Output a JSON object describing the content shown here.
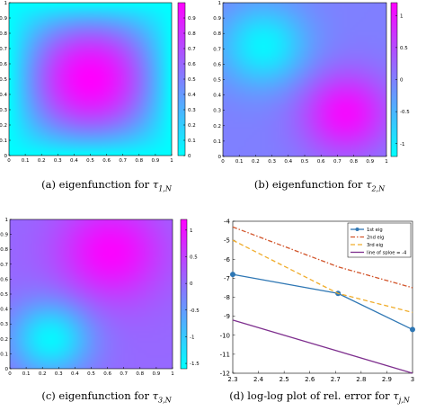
{
  "chart_data": [
    {
      "type": "heatmap",
      "mode": "eig1",
      "xlim": [
        0,
        1
      ],
      "ylim": [
        0,
        1
      ],
      "xticks": [
        "0",
        "0.1",
        "0.2",
        "0.3",
        "0.4",
        "0.5",
        "0.6",
        "0.7",
        "0.8",
        "0.9",
        "1"
      ],
      "yticks": [
        "0",
        "0.1",
        "0.2",
        "0.3",
        "0.4",
        "0.5",
        "0.6",
        "0.7",
        "0.8",
        "0.9",
        "1"
      ],
      "colorbar_ticks": [
        "0",
        "0.1",
        "0.2",
        "0.3",
        "0.4",
        "0.5",
        "0.6",
        "0.7",
        "0.8",
        "0.9"
      ],
      "colorbar_range": [
        0,
        1
      ],
      "caption_prefix": "(a) eigenfunction for ",
      "caption_symbol": "τ",
      "caption_sub": "1,N"
    },
    {
      "type": "heatmap",
      "mode": "eig2",
      "xlim": [
        0,
        1
      ],
      "ylim": [
        0,
        1
      ],
      "xticks": [
        "0",
        "0.1",
        "0.2",
        "0.3",
        "0.4",
        "0.5",
        "0.6",
        "0.7",
        "0.8",
        "0.9",
        "1"
      ],
      "yticks": [
        "0",
        "0.1",
        "0.2",
        "0.3",
        "0.4",
        "0.5",
        "0.6",
        "0.7",
        "0.8",
        "0.9",
        "1"
      ],
      "colorbar_ticks": [
        "1",
        "0.5",
        "0",
        "-0.5",
        "-1"
      ],
      "colorbar_values": [
        1,
        0.5,
        0,
        -0.5,
        -1
      ],
      "colorbar_range": [
        -1.2,
        1.2
      ],
      "caption_prefix": "(b) eigenfunction for ",
      "caption_symbol": "τ",
      "caption_sub": "2,N"
    },
    {
      "type": "heatmap",
      "mode": "eig3",
      "xlim": [
        0,
        1
      ],
      "ylim": [
        0,
        1
      ],
      "xticks": [
        "0",
        "0.1",
        "0.2",
        "0.3",
        "0.4",
        "0.5",
        "0.6",
        "0.7",
        "0.8",
        "0.9",
        "1"
      ],
      "yticks": [
        "0",
        "0.1",
        "0.2",
        "0.3",
        "0.4",
        "0.5",
        "0.6",
        "0.7",
        "0.8",
        "0.9",
        "1"
      ],
      "colorbar_ticks": [
        "1",
        "0.5",
        "0",
        "-0.5",
        "-1",
        "-1.5"
      ],
      "colorbar_values": [
        1,
        0.5,
        0,
        -0.5,
        -1,
        -1.5
      ],
      "colorbar_range": [
        -1.6,
        1.2
      ],
      "caption_prefix": "(c) eigenfunction for ",
      "caption_symbol": "τ",
      "caption_sub": "3,N"
    },
    {
      "type": "line",
      "x_ticks": [
        "2.3",
        "2.4",
        "2.5",
        "2.6",
        "2.7",
        "2.8",
        "2.9",
        "3"
      ],
      "y_ticks": [
        "-4",
        "-5",
        "-6",
        "-7",
        "-8",
        "-9",
        "-10",
        "-11",
        "-12"
      ],
      "xlim": [
        2.3,
        3.0
      ],
      "ylim": [
        -12,
        -4
      ],
      "legend_position": "top-right",
      "series": [
        {
          "name": "1st eig",
          "x": [
            2.3,
            2.71,
            3.0
          ],
          "y": [
            -6.8,
            -7.8,
            -9.7
          ],
          "color": "#2f77b4",
          "style": "solid",
          "marker": "circle"
        },
        {
          "name": "2nd eig",
          "x": [
            2.3,
            2.71,
            3.0
          ],
          "y": [
            -4.3,
            -6.4,
            -7.5
          ],
          "color": "#d2552b",
          "style": "dashdot"
        },
        {
          "name": "3rd eig",
          "x": [
            2.3,
            2.71,
            3.0
          ],
          "y": [
            -5.0,
            -7.8,
            -8.8
          ],
          "color": "#f0ad2c",
          "style": "dashed"
        },
        {
          "name": "line of sploe = -4",
          "x": [
            2.3,
            3.0
          ],
          "y": [
            -9.2,
            -12.0
          ],
          "color": "#7e2f8e",
          "style": "solid"
        }
      ],
      "caption_prefix": "(d) log-log plot of rel. error for ",
      "caption_symbol": "τ",
      "caption_sub": "j,N"
    }
  ]
}
